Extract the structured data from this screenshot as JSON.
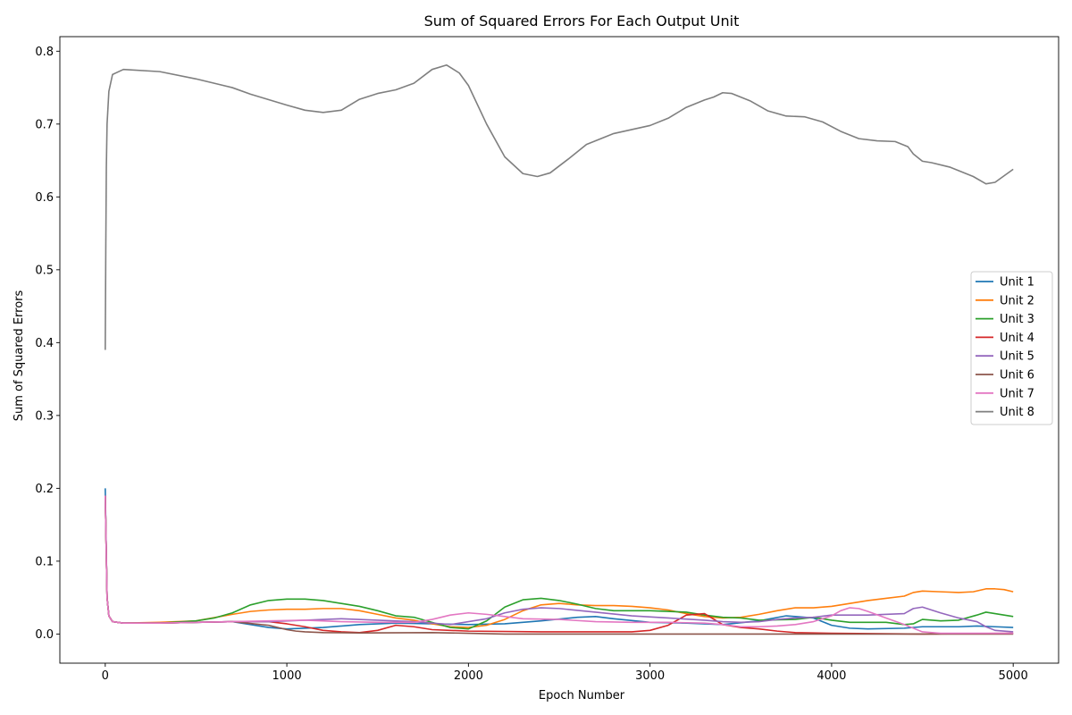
{
  "chart_data": {
    "type": "line",
    "title": "Sum of Squared Errors For Each Output Unit",
    "xlabel": "Epoch Number",
    "ylabel": "Sum of Squared Errors",
    "xlim": [
      -250,
      5250
    ],
    "ylim": [
      -0.04,
      0.82
    ],
    "xticks": [
      0,
      1000,
      2000,
      3000,
      4000,
      5000
    ],
    "yticks": [
      0.0,
      0.1,
      0.2,
      0.3,
      0.4,
      0.5,
      0.6,
      0.7,
      0.8
    ],
    "xtick_labels": [
      "0",
      "1000",
      "2000",
      "3000",
      "4000",
      "5000"
    ],
    "ytick_labels": [
      "0.0",
      "0.1",
      "0.2",
      "0.3",
      "0.4",
      "0.5",
      "0.6",
      "0.7",
      "0.8"
    ],
    "grid": false,
    "legend_position": "center-right",
    "series": [
      {
        "name": "Unit 1",
        "color": "#1f77b4",
        "x": [
          0,
          10,
          20,
          40,
          100,
          300,
          500,
          700,
          800,
          900,
          1000,
          1200,
          1400,
          1600,
          1800,
          2000,
          2200,
          2400,
          2600,
          2700,
          2800,
          3000,
          3200,
          3400,
          3600,
          3750,
          3900,
          4000,
          4100,
          4200,
          4400,
          4500,
          4600,
          4700,
          4800,
          4900,
          5000
        ],
        "y": [
          0.2,
          0.05,
          0.025,
          0.017,
          0.015,
          0.015,
          0.016,
          0.017,
          0.013,
          0.009,
          0.007,
          0.009,
          0.013,
          0.015,
          0.014,
          0.013,
          0.014,
          0.018,
          0.023,
          0.024,
          0.021,
          0.016,
          0.015,
          0.013,
          0.018,
          0.025,
          0.022,
          0.012,
          0.008,
          0.007,
          0.008,
          0.01,
          0.01,
          0.01,
          0.011,
          0.01,
          0.009
        ]
      },
      {
        "name": "Unit 2",
        "color": "#ff7f0e",
        "x": [
          0,
          10,
          20,
          40,
          100,
          300,
          500,
          700,
          800,
          900,
          1000,
          1100,
          1200,
          1300,
          1400,
          1500,
          1600,
          1700,
          1800,
          1900,
          2000,
          2100,
          2200,
          2300,
          2400,
          2500,
          2600,
          2700,
          2800,
          2900,
          3000,
          3100,
          3200,
          3300,
          3400,
          3500,
          3600,
          3700,
          3800,
          3900,
          4000,
          4100,
          4200,
          4300,
          4400,
          4450,
          4500,
          4600,
          4700,
          4780,
          4850,
          4900,
          4950,
          5000
        ],
        "y": [
          0.19,
          0.05,
          0.025,
          0.017,
          0.015,
          0.016,
          0.018,
          0.027,
          0.031,
          0.033,
          0.034,
          0.034,
          0.035,
          0.035,
          0.032,
          0.027,
          0.022,
          0.019,
          0.014,
          0.01,
          0.009,
          0.012,
          0.02,
          0.032,
          0.04,
          0.042,
          0.04,
          0.039,
          0.039,
          0.038,
          0.036,
          0.033,
          0.028,
          0.024,
          0.022,
          0.023,
          0.027,
          0.032,
          0.036,
          0.036,
          0.038,
          0.042,
          0.046,
          0.049,
          0.052,
          0.057,
          0.059,
          0.058,
          0.057,
          0.058,
          0.062,
          0.062,
          0.061,
          0.058
        ]
      },
      {
        "name": "Unit 3",
        "color": "#2ca02c",
        "x": [
          0,
          10,
          20,
          40,
          100,
          300,
          500,
          600,
          700,
          800,
          900,
          1000,
          1100,
          1200,
          1300,
          1400,
          1500,
          1600,
          1700,
          1800,
          1900,
          2000,
          2100,
          2200,
          2300,
          2400,
          2500,
          2600,
          2700,
          2800,
          3000,
          3200,
          3300,
          3400,
          3500,
          3600,
          3800,
          3900,
          4000,
          4100,
          4200,
          4300,
          4400,
          4450,
          4500,
          4600,
          4700,
          4800,
          4850,
          4900,
          5000
        ],
        "y": [
          0.19,
          0.05,
          0.025,
          0.017,
          0.015,
          0.015,
          0.018,
          0.022,
          0.029,
          0.04,
          0.046,
          0.048,
          0.048,
          0.046,
          0.042,
          0.038,
          0.032,
          0.025,
          0.023,
          0.016,
          0.009,
          0.007,
          0.018,
          0.037,
          0.047,
          0.049,
          0.046,
          0.041,
          0.035,
          0.032,
          0.032,
          0.03,
          0.026,
          0.023,
          0.022,
          0.019,
          0.02,
          0.023,
          0.019,
          0.016,
          0.016,
          0.016,
          0.013,
          0.014,
          0.02,
          0.018,
          0.019,
          0.026,
          0.03,
          0.028,
          0.024
        ]
      },
      {
        "name": "Unit 4",
        "color": "#d62728",
        "x": [
          0,
          10,
          20,
          40,
          100,
          300,
          500,
          700,
          900,
          1000,
          1100,
          1200,
          1300,
          1400,
          1500,
          1600,
          1700,
          1800,
          2000,
          2400,
          2800,
          2900,
          3000,
          3100,
          3200,
          3300,
          3400,
          3500,
          3600,
          3700,
          3800,
          4000,
          4500,
          5000
        ],
        "y": [
          0.19,
          0.05,
          0.025,
          0.017,
          0.015,
          0.015,
          0.016,
          0.017,
          0.017,
          0.014,
          0.01,
          0.005,
          0.003,
          0.002,
          0.005,
          0.012,
          0.01,
          0.006,
          0.004,
          0.003,
          0.003,
          0.003,
          0.005,
          0.012,
          0.026,
          0.028,
          0.013,
          0.009,
          0.007,
          0.004,
          0.002,
          0.001,
          0.0,
          0.001
        ]
      },
      {
        "name": "Unit 5",
        "color": "#9467bd",
        "x": [
          0,
          10,
          20,
          40,
          100,
          300,
          500,
          700,
          900,
          1100,
          1300,
          1500,
          1700,
          1900,
          2100,
          2200,
          2300,
          2400,
          2500,
          2700,
          2900,
          3100,
          3300,
          3400,
          3500,
          3600,
          3700,
          3800,
          3900,
          4000,
          4200,
          4400,
          4450,
          4500,
          4600,
          4700,
          4800,
          4850,
          4900,
          5000
        ],
        "y": [
          0.19,
          0.05,
          0.025,
          0.017,
          0.015,
          0.015,
          0.016,
          0.017,
          0.017,
          0.019,
          0.021,
          0.019,
          0.017,
          0.013,
          0.021,
          0.029,
          0.034,
          0.036,
          0.035,
          0.03,
          0.025,
          0.022,
          0.019,
          0.017,
          0.016,
          0.017,
          0.02,
          0.022,
          0.023,
          0.026,
          0.026,
          0.028,
          0.035,
          0.037,
          0.029,
          0.022,
          0.017,
          0.01,
          0.005,
          0.003
        ]
      },
      {
        "name": "Unit 6",
        "color": "#8c564b",
        "x": [
          0,
          10,
          20,
          40,
          100,
          300,
          500,
          700,
          900,
          1000,
          1050,
          1100,
          1200,
          1400,
          1800,
          2000,
          2200,
          3000,
          3500,
          4000,
          4500,
          5000
        ],
        "y": [
          0.19,
          0.05,
          0.025,
          0.017,
          0.015,
          0.015,
          0.016,
          0.017,
          0.012,
          0.006,
          0.004,
          0.003,
          0.002,
          0.0015,
          0.002,
          0.001,
          0.0,
          0.0,
          0.0,
          0.0,
          0.0,
          0.0
        ]
      },
      {
        "name": "Unit 7",
        "color": "#e377c2",
        "x": [
          0,
          10,
          20,
          40,
          100,
          300,
          500,
          700,
          900,
          1100,
          1300,
          1500,
          1700,
          1800,
          1900,
          2000,
          2100,
          2200,
          2300,
          2500,
          2700,
          2900,
          3100,
          3300,
          3400,
          3500,
          3600,
          3700,
          3800,
          3900,
          4000,
          4050,
          4100,
          4150,
          4200,
          4300,
          4400,
          4500,
          4600,
          5000
        ],
        "y": [
          0.19,
          0.05,
          0.025,
          0.017,
          0.015,
          0.015,
          0.016,
          0.017,
          0.018,
          0.019,
          0.017,
          0.016,
          0.016,
          0.02,
          0.026,
          0.029,
          0.027,
          0.024,
          0.021,
          0.02,
          0.017,
          0.016,
          0.016,
          0.015,
          0.013,
          0.01,
          0.01,
          0.011,
          0.013,
          0.017,
          0.025,
          0.032,
          0.036,
          0.035,
          0.031,
          0.022,
          0.013,
          0.003,
          0.001,
          0.001
        ]
      },
      {
        "name": "Unit 8",
        "color": "#7f7f7f",
        "x": [
          0,
          3,
          6,
          10,
          20,
          40,
          100,
          300,
          500,
          700,
          800,
          1000,
          1100,
          1200,
          1300,
          1400,
          1500,
          1600,
          1700,
          1800,
          1880,
          1950,
          2000,
          2100,
          2200,
          2300,
          2380,
          2450,
          2550,
          2650,
          2800,
          3000,
          3100,
          3200,
          3300,
          3350,
          3400,
          3450,
          3550,
          3650,
          3750,
          3850,
          3950,
          4050,
          4150,
          4250,
          4350,
          4420,
          4450,
          4500,
          4550,
          4650,
          4780,
          4850,
          4900,
          5000
        ],
        "y": [
          0.39,
          0.53,
          0.64,
          0.7,
          0.745,
          0.768,
          0.775,
          0.772,
          0.762,
          0.75,
          0.741,
          0.726,
          0.719,
          0.716,
          0.719,
          0.734,
          0.742,
          0.747,
          0.756,
          0.775,
          0.781,
          0.77,
          0.753,
          0.7,
          0.655,
          0.632,
          0.628,
          0.633,
          0.652,
          0.672,
          0.687,
          0.698,
          0.708,
          0.723,
          0.733,
          0.737,
          0.743,
          0.742,
          0.732,
          0.718,
          0.711,
          0.71,
          0.703,
          0.69,
          0.68,
          0.677,
          0.676,
          0.669,
          0.659,
          0.649,
          0.647,
          0.641,
          0.628,
          0.618,
          0.62,
          0.638
        ]
      }
    ]
  }
}
